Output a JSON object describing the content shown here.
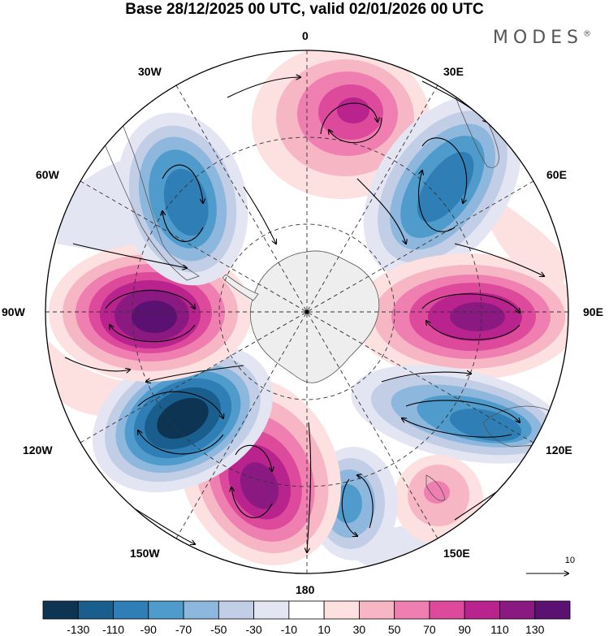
{
  "title": "Base 28/12/2025 00 UTC, valid 02/01/2026 00 UTC",
  "brand": "MODES",
  "brand_mark": "®",
  "longitude_labels": {
    "lon_0": "0",
    "lon_30e": "30E",
    "lon_60e": "60E",
    "lon_90e": "90E",
    "lon_120e": "120E",
    "lon_150e": "150E",
    "lon_180": "180",
    "lon_150w": "150W",
    "lon_120w": "120W",
    "lon_90w": "90W",
    "lon_60w": "60W",
    "lon_30w": "30W"
  },
  "reference_vector": {
    "label": "10"
  },
  "colorbar": {
    "ticks": [
      "-130",
      "-110",
      "-90",
      "-70",
      "-50",
      "-30",
      "-10",
      "10",
      "30",
      "50",
      "70",
      "90",
      "110",
      "130"
    ],
    "colors": [
      "#0d3553",
      "#1a5e8e",
      "#2f7fb6",
      "#4f9bcb",
      "#8db7dd",
      "#c2cde6",
      "#e4e5f2",
      "#ffffff",
      "#fde0e0",
      "#f7b6c4",
      "#ee7fb0",
      "#dd4a9c",
      "#b8238d",
      "#8a1a82",
      "#5b1172"
    ]
  }
}
